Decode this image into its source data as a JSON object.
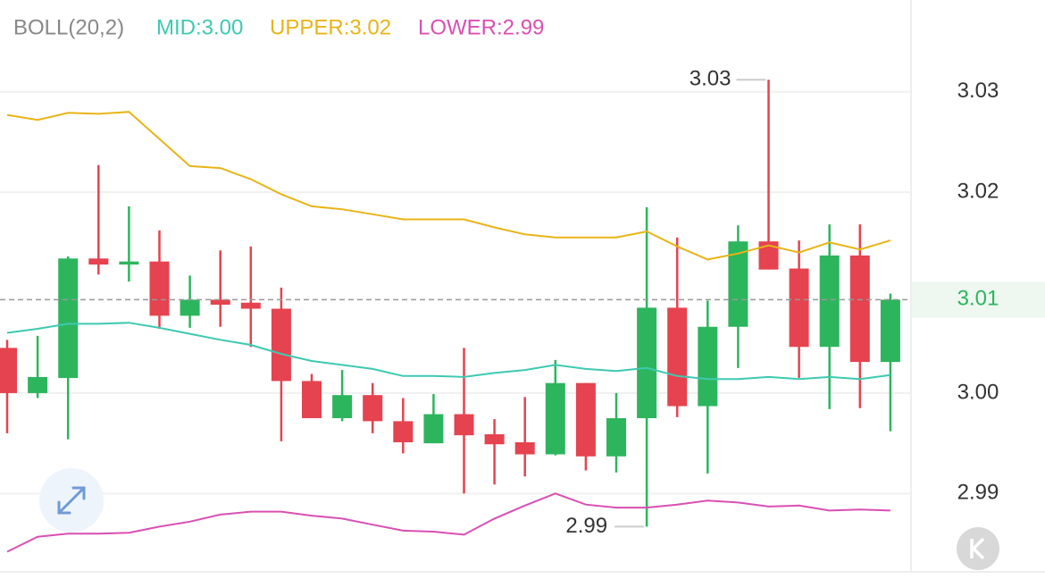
{
  "chart_data": {
    "type": "candlestick",
    "indicator": "BOLL(20,2)",
    "candles": {
      "open": [
        3.0045,
        3.0,
        3.0015,
        3.0134,
        3.0128,
        3.0131,
        3.0077,
        3.0093,
        3.009,
        3.0084,
        3.0012,
        2.9975,
        2.9998,
        2.9972,
        2.995,
        2.9979,
        2.9959,
        2.9951,
        2.9939,
        3.001,
        2.9937,
        2.9975,
        3.0085,
        2.9987,
        3.0066,
        3.0151,
        3.0124,
        3.0046,
        3.0137,
        3.0031
      ],
      "high": [
        3.0053,
        3.0057,
        3.0136,
        3.0227,
        3.0186,
        3.0162,
        3.0117,
        3.0142,
        3.0146,
        3.0105,
        3.0019,
        3.0023,
        3.001,
        2.9995,
        2.9999,
        3.0045,
        2.9974,
        2.9996,
        3.0033,
        3.001,
        3.0,
        3.0185,
        3.0155,
        3.0092,
        3.0167,
        3.0312,
        3.0152,
        3.0168,
        3.0168,
        3.0099
      ],
      "low": [
        2.996,
        2.9995,
        2.9954,
        3.0118,
        3.0111,
        3.0064,
        3.0065,
        3.0066,
        3.0046,
        2.9952,
        2.9975,
        2.9972,
        2.996,
        2.994,
        2.995,
        2.99,
        2.9909,
        2.9917,
        2.9938,
        2.9923,
        2.9921,
        2.9867,
        2.9976,
        2.992,
        3.0025,
        3.0123,
        3.0015,
        2.9984,
        2.9985,
        2.9962
      ],
      "close": [
        3.0,
        3.0016,
        3.0134,
        3.0128,
        3.0131,
        3.0077,
        3.0093,
        3.0088,
        3.0084,
        3.0012,
        2.9975,
        2.9998,
        2.9972,
        2.9951,
        2.9979,
        2.9958,
        2.9949,
        2.9939,
        3.001,
        2.9937,
        2.9975,
        3.0085,
        2.9987,
        3.0066,
        3.0151,
        3.0123,
        3.0046,
        3.0137,
        3.0031,
        3.0093
      ]
    },
    "up_color": "#2db55d",
    "down_color": "#e5434f",
    "series": [
      {
        "name": "MID:3.00",
        "color": "#3ec9b1",
        "values": [
          3.006,
          3.0064,
          3.0069,
          3.0069,
          3.007,
          3.0065,
          3.0059,
          3.0053,
          3.0048,
          3.0039,
          3.0032,
          3.0028,
          3.0024,
          3.0017,
          3.0017,
          3.0016,
          3.002,
          3.0023,
          3.0028,
          3.0024,
          3.0022,
          3.0025,
          3.0017,
          3.0014,
          3.0014,
          3.0016,
          3.0014,
          3.0016,
          3.0014,
          3.0018
        ]
      },
      {
        "name": "UPPER:3.02",
        "color": "#e8b417",
        "values": [
          3.0277,
          3.0272,
          3.0279,
          3.0278,
          3.028,
          3.0253,
          3.0226,
          3.0224,
          3.0213,
          3.0198,
          3.0186,
          3.0183,
          3.0178,
          3.0173,
          3.0173,
          3.0173,
          3.0165,
          3.0158,
          3.0155,
          3.0155,
          3.0155,
          3.0161,
          3.0146,
          3.0133,
          3.0139,
          3.0147,
          3.014,
          3.015,
          3.0143,
          3.0152
        ]
      },
      {
        "name": "LOWER:2.99",
        "color": "#d94fb3",
        "values": [
          2.9842,
          2.9857,
          2.986,
          2.986,
          2.9861,
          2.9867,
          2.9872,
          2.9879,
          2.9882,
          2.9882,
          2.9878,
          2.9875,
          2.9869,
          2.9863,
          2.9862,
          2.9859,
          2.9875,
          2.9888,
          2.99,
          2.9889,
          2.9886,
          2.9886,
          2.9889,
          2.9893,
          2.9891,
          2.9887,
          2.9888,
          2.9883,
          2.9884,
          2.9883
        ]
      }
    ],
    "ylim": [
      2.9822,
      3.0338
    ],
    "yticks": [
      2.99,
      {
        "value": 3,
        "label": "3.00"
      },
      3.02,
      3.03
    ],
    "grid": true,
    "last_price_label": "3.01",
    "high_label": "3.03",
    "low_label": "2.99"
  }
}
